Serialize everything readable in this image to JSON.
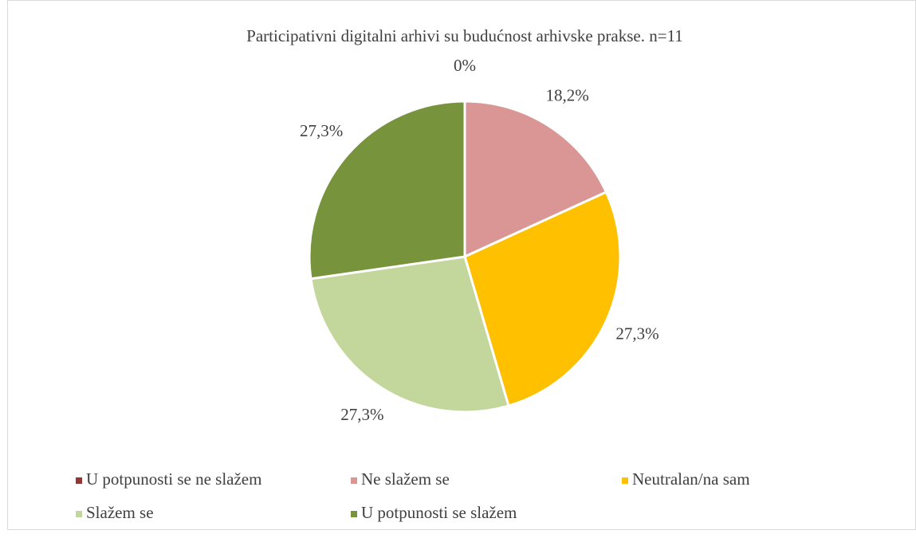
{
  "chart_data": {
    "type": "pie",
    "title": "Participativni digitalni arhivi su budućnost arhivske prakse. n=11",
    "categories": [
      "U potpunosti se ne slažem",
      "Ne slažem se",
      "Neutralan/na sam",
      "Slažem se",
      "U potpunosti se slažem"
    ],
    "values": [
      0,
      18.2,
      27.3,
      27.3,
      27.3
    ],
    "value_labels": [
      "0%",
      "18,2%",
      "27,3%",
      "27,3%",
      "27,3%"
    ],
    "colors": [
      "#943634",
      "#D99694",
      "#FFC000",
      "#C3D69B",
      "#77933C"
    ],
    "legend": "bottom"
  }
}
